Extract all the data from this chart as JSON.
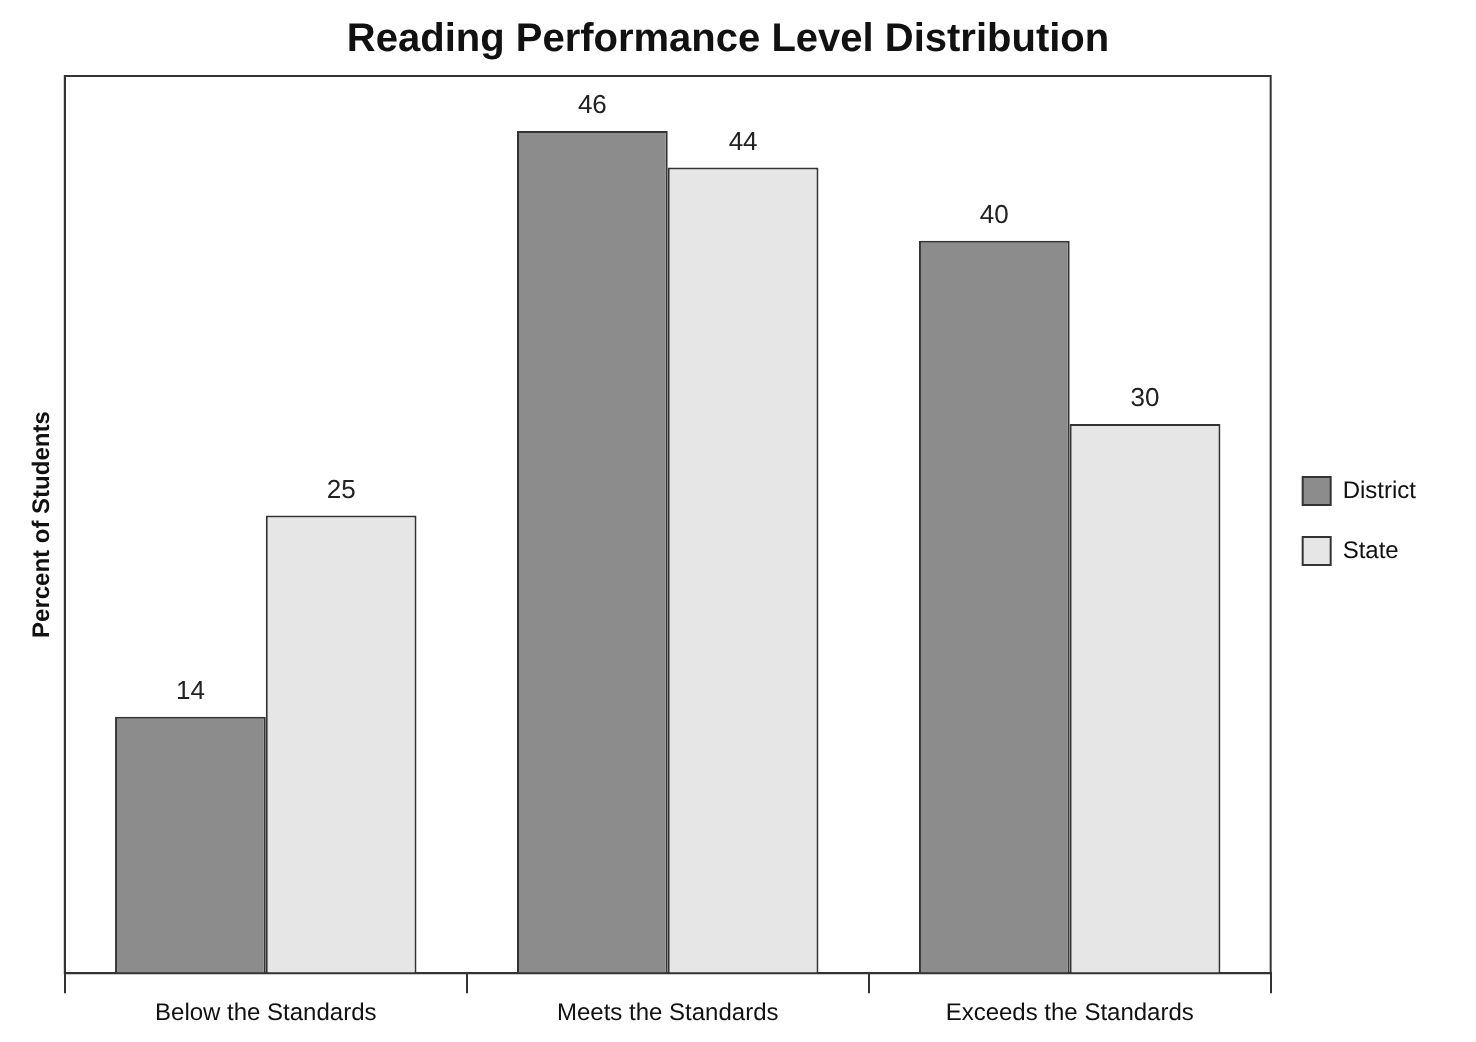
{
  "chart_data": {
    "type": "bar",
    "title": "Reading Performance Level Distribution",
    "ylabel": "Percent of Students",
    "categories": [
      "Below the Standards",
      "Meets the Standards",
      "Exceeds the Standards"
    ],
    "series": [
      {
        "name": "District",
        "color": "#8c8c8c",
        "values": [
          14,
          46,
          40
        ]
      },
      {
        "name": "State",
        "color": "#e6e6e6",
        "values": [
          25,
          44,
          30
        ]
      }
    ],
    "ylim": [
      0,
      49
    ],
    "tick_labels": "x",
    "data_labels": true,
    "legend": "right",
    "grid": false
  }
}
